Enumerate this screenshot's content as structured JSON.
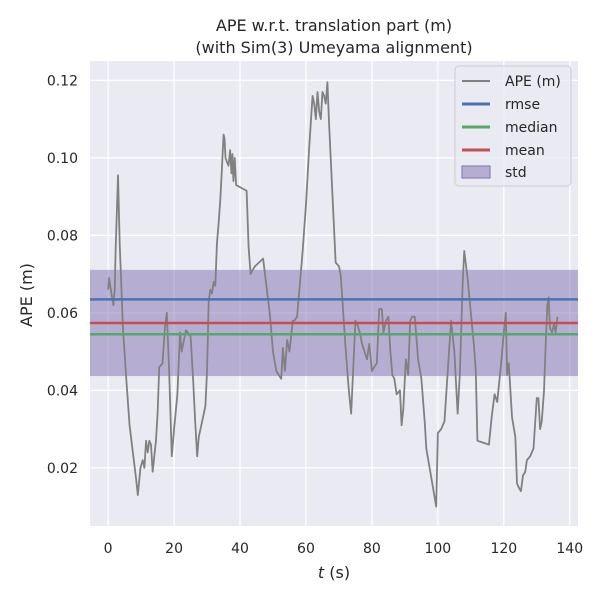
{
  "chart_data": {
    "type": "line",
    "title": "APE w.r.t. translation part (m)",
    "subtitle": "(with Sim(3) Umeyama alignment)",
    "xlabel_var": "t",
    "xlabel_unit": " (s)",
    "ylabel": "APE (m)",
    "xlim": [
      -5.5,
      142.5
    ],
    "ylim": [
      0.005,
      0.125
    ],
    "xticks": [
      "0",
      "20",
      "40",
      "60",
      "80",
      "100",
      "120",
      "140"
    ],
    "yticks": [
      "0.02",
      "0.04",
      "0.06",
      "0.08",
      "0.10",
      "0.12"
    ],
    "grid": true,
    "legend_position": "upper right",
    "legend": [
      "APE (m)",
      "rmse",
      "median",
      "mean",
      "std"
    ],
    "colors": {
      "ape": "#808080",
      "rmse": "#4c72b0",
      "median": "#55a868",
      "mean": "#c44e52",
      "std": "#8172b2",
      "plot_bg": "#eaeaf2"
    },
    "stats": {
      "rmse": 0.0635,
      "median": 0.0545,
      "mean": 0.0574,
      "std_low": 0.0437,
      "std_high": 0.0711
    },
    "series": [
      {
        "name": "APE (m)",
        "points": [
          [
            0,
            0.066
          ],
          [
            0.3,
            0.069
          ],
          [
            1,
            0.065
          ],
          [
            1.6,
            0.062
          ],
          [
            2,
            0.066
          ],
          [
            2.3,
            0.077
          ],
          [
            3,
            0.0955
          ],
          [
            3.5,
            0.078
          ],
          [
            4.5,
            0.056
          ],
          [
            5.5,
            0.043
          ],
          [
            6.5,
            0.031
          ],
          [
            7.5,
            0.024
          ],
          [
            8.5,
            0.017
          ],
          [
            9,
            0.013
          ],
          [
            9.8,
            0.02
          ],
          [
            10.5,
            0.022
          ],
          [
            11,
            0.02
          ],
          [
            11.5,
            0.027
          ],
          [
            12,
            0.024
          ],
          [
            12.5,
            0.027
          ],
          [
            13,
            0.026
          ],
          [
            13.5,
            0.019
          ],
          [
            14.5,
            0.027
          ],
          [
            15,
            0.034
          ],
          [
            15.5,
            0.046
          ],
          [
            16.5,
            0.047
          ],
          [
            17.2,
            0.056
          ],
          [
            17.8,
            0.06
          ],
          [
            18.5,
            0.045
          ],
          [
            19.3,
            0.023
          ],
          [
            20,
            0.03
          ],
          [
            21,
            0.039
          ],
          [
            21.8,
            0.055
          ],
          [
            22.3,
            0.05
          ],
          [
            23,
            0.053
          ],
          [
            23.6,
            0.0555
          ],
          [
            25,
            0.054
          ],
          [
            25.7,
            0.044
          ],
          [
            26.4,
            0.032
          ],
          [
            27,
            0.023
          ],
          [
            27.5,
            0.028
          ],
          [
            28.5,
            0.032
          ],
          [
            29.5,
            0.036
          ],
          [
            30,
            0.045
          ],
          [
            30.5,
            0.063
          ],
          [
            31,
            0.066
          ],
          [
            31.5,
            0.065
          ],
          [
            32,
            0.068
          ],
          [
            32.5,
            0.067
          ],
          [
            33,
            0.078
          ],
          [
            33.5,
            0.083
          ],
          [
            34,
            0.089
          ],
          [
            34.5,
            0.097
          ],
          [
            35,
            0.106
          ],
          [
            35.3,
            0.105
          ],
          [
            35.6,
            0.1
          ],
          [
            36,
            0.099
          ],
          [
            36.5,
            0.098
          ],
          [
            37,
            0.102
          ],
          [
            37.4,
            0.096
          ],
          [
            37.7,
            0.101
          ],
          [
            38,
            0.094
          ],
          [
            38.4,
            0.1
          ],
          [
            38.8,
            0.093
          ],
          [
            42,
            0.0915
          ],
          [
            42.6,
            0.077
          ],
          [
            43.2,
            0.07
          ],
          [
            43.8,
            0.071
          ],
          [
            44.5,
            0.072
          ],
          [
            47,
            0.074
          ],
          [
            48,
            0.067
          ],
          [
            49,
            0.06
          ],
          [
            50,
            0.05
          ],
          [
            51,
            0.045
          ],
          [
            52.5,
            0.043
          ],
          [
            53,
            0.051
          ],
          [
            53.6,
            0.045
          ],
          [
            54.3,
            0.053
          ],
          [
            55,
            0.05
          ],
          [
            56,
            0.058
          ],
          [
            56.5,
            0.058
          ],
          [
            57.3,
            0.059
          ],
          [
            58,
            0.066
          ],
          [
            59,
            0.076
          ],
          [
            60,
            0.088
          ],
          [
            61,
            0.103
          ],
          [
            62,
            0.116
          ],
          [
            62.5,
            0.114
          ],
          [
            63,
            0.11
          ],
          [
            63.5,
            0.117
          ],
          [
            64,
            0.112
          ],
          [
            64.5,
            0.11
          ],
          [
            65,
            0.117
          ],
          [
            65.5,
            0.116
          ],
          [
            66,
            0.114
          ],
          [
            66.5,
            0.1195
          ],
          [
            67,
            0.109
          ],
          [
            68,
            0.091
          ],
          [
            69,
            0.073
          ],
          [
            69.5,
            0.0725
          ],
          [
            70,
            0.072
          ],
          [
            70.5,
            0.07
          ],
          [
            71,
            0.064
          ],
          [
            72,
            0.051
          ],
          [
            73,
            0.04
          ],
          [
            73.7,
            0.034
          ],
          [
            74.3,
            0.045
          ],
          [
            75,
            0.058
          ],
          [
            75.6,
            0.057
          ],
          [
            76.3,
            0.055
          ],
          [
            77,
            0.052
          ],
          [
            78.5,
            0.048
          ],
          [
            79.2,
            0.052
          ],
          [
            80,
            0.045
          ],
          [
            80.7,
            0.046
          ],
          [
            81.5,
            0.047
          ],
          [
            82.2,
            0.061
          ],
          [
            83,
            0.061
          ],
          [
            83.5,
            0.055
          ],
          [
            84.3,
            0.058
          ],
          [
            85,
            0.059
          ],
          [
            85.6,
            0.05
          ],
          [
            86.2,
            0.044
          ],
          [
            86.8,
            0.043
          ],
          [
            87.5,
            0.039
          ],
          [
            88.5,
            0.04
          ],
          [
            89,
            0.031
          ],
          [
            89.5,
            0.035
          ],
          [
            90.3,
            0.048
          ],
          [
            91,
            0.044
          ],
          [
            91.6,
            0.058
          ],
          [
            92.2,
            0.059
          ],
          [
            93,
            0.059
          ],
          [
            94,
            0.048
          ],
          [
            95,
            0.043
          ],
          [
            96,
            0.032
          ],
          [
            96.5,
            0.025
          ],
          [
            97.5,
            0.02
          ],
          [
            98.5,
            0.015
          ],
          [
            99.5,
            0.01
          ],
          [
            100,
            0.029
          ],
          [
            101,
            0.03
          ],
          [
            102,
            0.032
          ],
          [
            103,
            0.045
          ],
          [
            104,
            0.058
          ],
          [
            105,
            0.05
          ],
          [
            105.5,
            0.042
          ],
          [
            106,
            0.034
          ],
          [
            106.7,
            0.045
          ],
          [
            107.5,
            0.067
          ],
          [
            108,
            0.076
          ],
          [
            109,
            0.069
          ],
          [
            110,
            0.06
          ],
          [
            111,
            0.051
          ],
          [
            111.5,
            0.045
          ],
          [
            112,
            0.027
          ],
          [
            115.5,
            0.026
          ],
          [
            116.3,
            0.033
          ],
          [
            117.2,
            0.039
          ],
          [
            118,
            0.037
          ],
          [
            119.3,
            0.048
          ],
          [
            120,
            0.055
          ],
          [
            120.6,
            0.06
          ],
          [
            121,
            0.044
          ],
          [
            121.5,
            0.047
          ],
          [
            122.5,
            0.033
          ],
          [
            123.5,
            0.028
          ],
          [
            124,
            0.016
          ],
          [
            124.5,
            0.015
          ],
          [
            125.2,
            0.014
          ],
          [
            125.8,
            0.018
          ],
          [
            126.5,
            0.019
          ],
          [
            127,
            0.022
          ],
          [
            128,
            0.023
          ],
          [
            129,
            0.025
          ],
          [
            130,
            0.038
          ],
          [
            130.5,
            0.038
          ],
          [
            131,
            0.03
          ],
          [
            131.5,
            0.032
          ],
          [
            132.2,
            0.04
          ],
          [
            132.7,
            0.052
          ],
          [
            133.2,
            0.062
          ],
          [
            133.6,
            0.064
          ],
          [
            134,
            0.056
          ],
          [
            134.6,
            0.055
          ],
          [
            135.2,
            0.057
          ],
          [
            135.7,
            0.055
          ],
          [
            136.3,
            0.059
          ]
        ]
      }
    ]
  }
}
